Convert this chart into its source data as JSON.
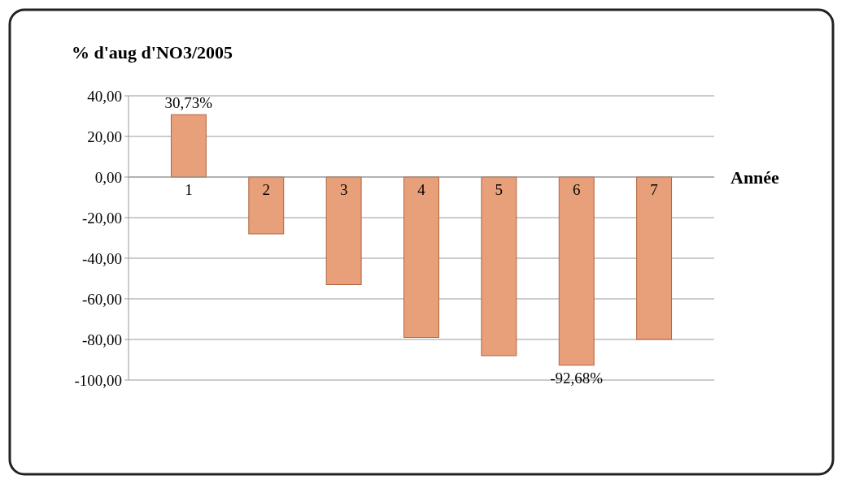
{
  "chart_data": {
    "type": "bar",
    "title": "% d'aug d'NO3/2005",
    "xlabel": "Année",
    "categories": [
      "1",
      "2",
      "3",
      "4",
      "5",
      "6",
      "7"
    ],
    "values": [
      30.73,
      -28,
      -53,
      -79,
      -88,
      -92.68,
      -80
    ],
    "value_labels": [
      "30,73%",
      null,
      null,
      null,
      null,
      "-92,68%",
      null
    ],
    "color": "#e8a07a",
    "ylim": [
      -100,
      40
    ],
    "yticks": [
      {
        "value": 40,
        "label": "40,00"
      },
      {
        "value": 20,
        "label": "20,00"
      },
      {
        "value": 0,
        "label": "0,00"
      },
      {
        "value": -20,
        "label": "-20,00"
      },
      {
        "value": -40,
        "label": "-40,00"
      },
      {
        "value": -60,
        "label": "-60,00"
      },
      {
        "value": -80,
        "label": "-80,00"
      },
      {
        "value": -100,
        "label": "-100,00"
      }
    ],
    "grid": true
  }
}
